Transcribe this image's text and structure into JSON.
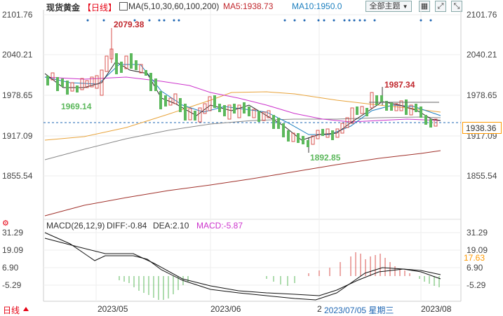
{
  "header": {
    "instrument": "现货黄金",
    "period": "【日线】",
    "ma_label": "MA(5,10,30,60,100,200)",
    "ma5": "MA5:1938.73",
    "ma10": "MA10:1950.0",
    "theme_button": "全部主题",
    "theme_chevron": "▼"
  },
  "price_axis": {
    "ticks": [
      "2101.76",
      "2040.21",
      "1978.65",
      "1917.09",
      "1855.54"
    ],
    "current_price": "1938.36"
  },
  "annotations": {
    "high_1": "2079.38",
    "low_1": "1969.14",
    "high_2": "1987.34",
    "low_2": "1892.85"
  },
  "macd": {
    "label": "MACD(26,12,9)",
    "diff": "DIFF:-0.84",
    "dea": "DEA:2.10",
    "macd": "MACD:-5.87",
    "ticks": [
      "31.29",
      "19.09",
      "6.90",
      "-5.29"
    ],
    "current": "17.63"
  },
  "xaxis": {
    "labels": [
      "2023/05",
      "2023/06",
      "2",
      "2023/07/05 星期三",
      "2023/08"
    ]
  },
  "footer": {
    "period_tab": "日线"
  },
  "colors": {
    "up": "#d9534f",
    "down": "#5cb85c",
    "accent": "#e60012",
    "macd_color": "#cc33cc",
    "highlight": "#ff9900"
  }
}
